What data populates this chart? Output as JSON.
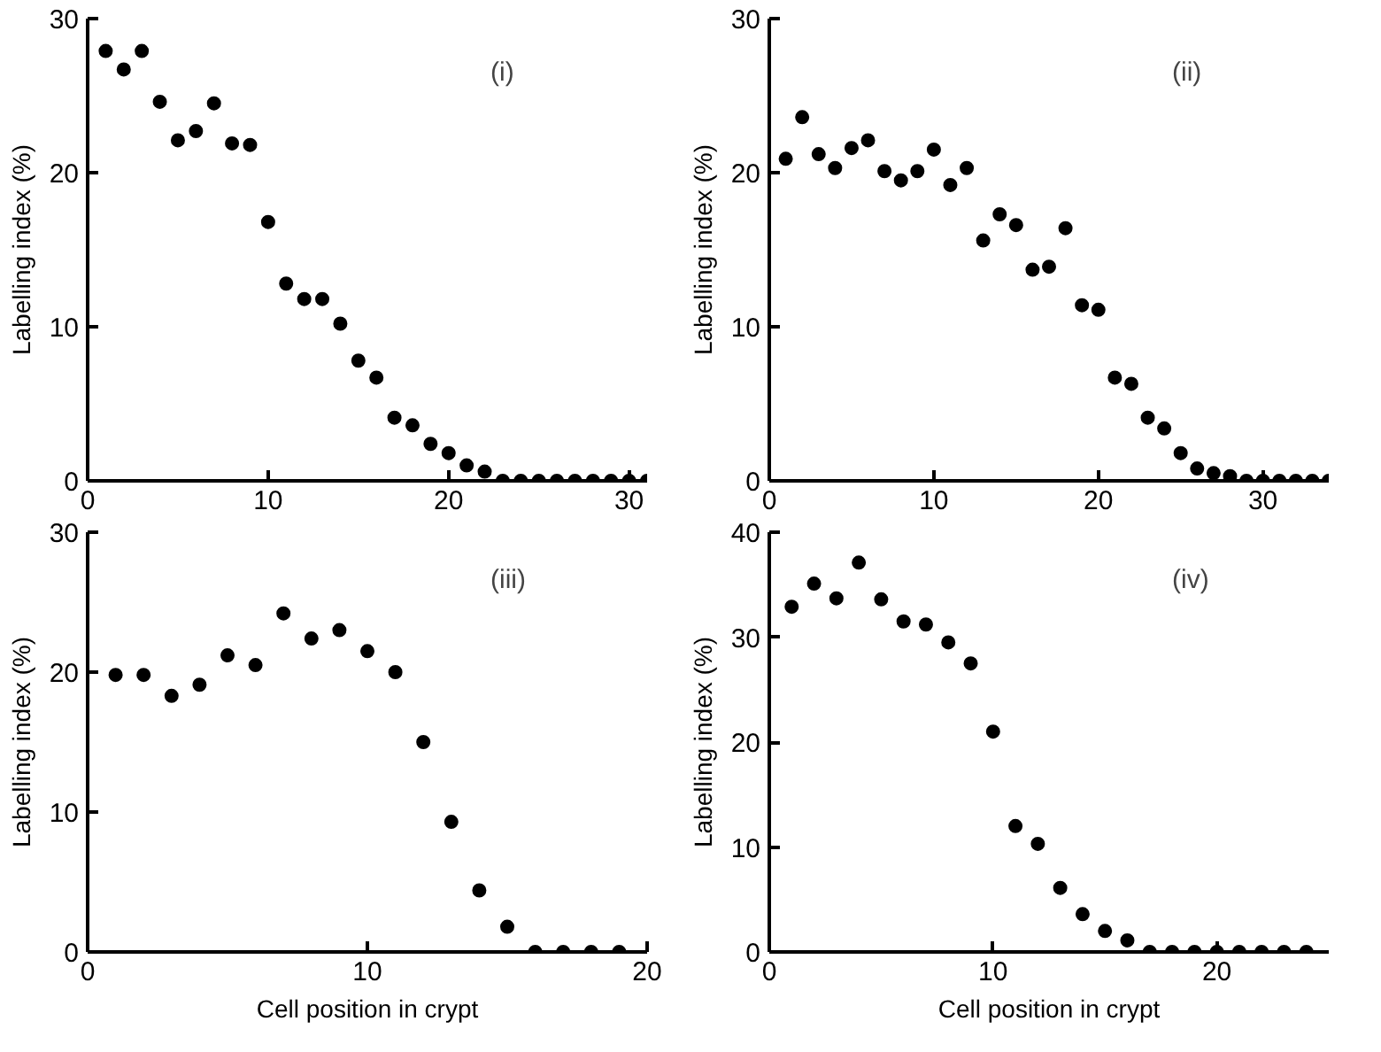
{
  "chart_data": [
    {
      "type": "scatter",
      "ylabel": "Labelling index (%)",
      "annotations": [
        "(i)"
      ],
      "marker": "circle",
      "grid": false,
      "xlim": [
        0,
        31
      ],
      "ylim": [
        0,
        30
      ],
      "xticks": [
        0,
        10,
        20,
        30
      ],
      "yticks": [
        0,
        10,
        20,
        30
      ],
      "x": [
        1,
        2,
        3,
        4,
        5,
        6,
        7,
        8,
        9,
        10,
        11,
        12,
        13,
        14,
        15,
        16,
        17,
        18,
        19,
        20,
        21,
        22,
        23,
        24,
        25,
        26,
        27,
        28,
        29,
        30,
        31
      ],
      "series": [
        {
          "color": "#000000",
          "values": [
            27.9,
            26.7,
            27.9,
            24.6,
            22.1,
            22.7,
            24.5,
            21.9,
            21.8,
            16.8,
            12.8,
            11.8,
            11.8,
            10.2,
            7.8,
            6.7,
            4.1,
            3.6,
            2.4,
            1.8,
            1.0,
            0.6,
            0,
            0,
            0,
            0,
            0,
            0,
            0,
            0,
            0
          ]
        }
      ]
    },
    {
      "type": "scatter",
      "ylabel": "Labelling index (%)",
      "annotations": [
        "(ii)"
      ],
      "marker": "circle",
      "grid": false,
      "xlim": [
        0,
        34
      ],
      "ylim": [
        0,
        30
      ],
      "xticks": [
        0,
        10,
        20,
        30
      ],
      "yticks": [
        0,
        10,
        20,
        30
      ],
      "x": [
        1,
        2,
        3,
        4,
        5,
        6,
        7,
        8,
        9,
        10,
        11,
        12,
        13,
        14,
        15,
        16,
        17,
        18,
        19,
        20,
        21,
        22,
        23,
        24,
        25,
        26,
        27,
        28,
        29,
        30,
        31,
        32,
        33,
        34
      ],
      "series": [
        {
          "color": "#000000",
          "values": [
            20.9,
            23.6,
            21.2,
            20.3,
            21.6,
            22.1,
            20.1,
            19.5,
            20.1,
            21.5,
            19.2,
            20.3,
            15.6,
            17.3,
            16.6,
            13.7,
            13.9,
            16.4,
            11.4,
            11.1,
            6.7,
            6.3,
            4.1,
            3.4,
            1.8,
            0.8,
            0.5,
            0.3,
            0,
            0,
            0,
            0,
            0,
            0
          ]
        }
      ]
    },
    {
      "type": "scatter",
      "xlabel": "Cell position in crypt",
      "ylabel": "Labelling index (%)",
      "annotations": [
        "(iii)"
      ],
      "marker": "circle",
      "grid": false,
      "xlim": [
        0,
        20
      ],
      "ylim": [
        0,
        30
      ],
      "xticks": [
        0,
        10,
        20
      ],
      "yticks": [
        0,
        10,
        20,
        30
      ],
      "x": [
        1,
        2,
        3,
        4,
        5,
        6,
        7,
        8,
        9,
        10,
        11,
        12,
        13,
        14,
        15,
        16,
        17,
        18,
        19
      ],
      "series": [
        {
          "color": "#000000",
          "values": [
            19.8,
            19.8,
            18.3,
            19.1,
            21.2,
            20.5,
            24.2,
            22.4,
            23.0,
            21.5,
            20.0,
            15.0,
            9.3,
            4.4,
            1.8,
            0,
            0,
            0,
            0
          ]
        }
      ]
    },
    {
      "type": "scatter",
      "xlabel": "Cell position in crypt",
      "ylabel": "Labelling index (%)",
      "annotations": [
        "(iv)"
      ],
      "marker": "circle",
      "grid": false,
      "xlim": [
        0,
        25
      ],
      "ylim": [
        0,
        40
      ],
      "xticks": [
        0,
        10,
        20
      ],
      "yticks": [
        0,
        10,
        20,
        30,
        40
      ],
      "x": [
        1,
        2,
        3,
        4,
        5,
        6,
        7,
        8,
        9,
        10,
        11,
        12,
        13,
        14,
        15,
        16,
        17,
        18,
        19,
        20,
        21,
        22,
        23,
        24
      ],
      "series": [
        {
          "color": "#000000",
          "values": [
            32.9,
            35.1,
            33.7,
            37.1,
            33.6,
            31.5,
            31.2,
            29.5,
            27.5,
            21.0,
            12.0,
            10.3,
            6.1,
            3.6,
            2.0,
            1.1,
            0,
            0,
            0,
            0,
            0,
            0,
            0,
            0
          ]
        }
      ]
    }
  ]
}
